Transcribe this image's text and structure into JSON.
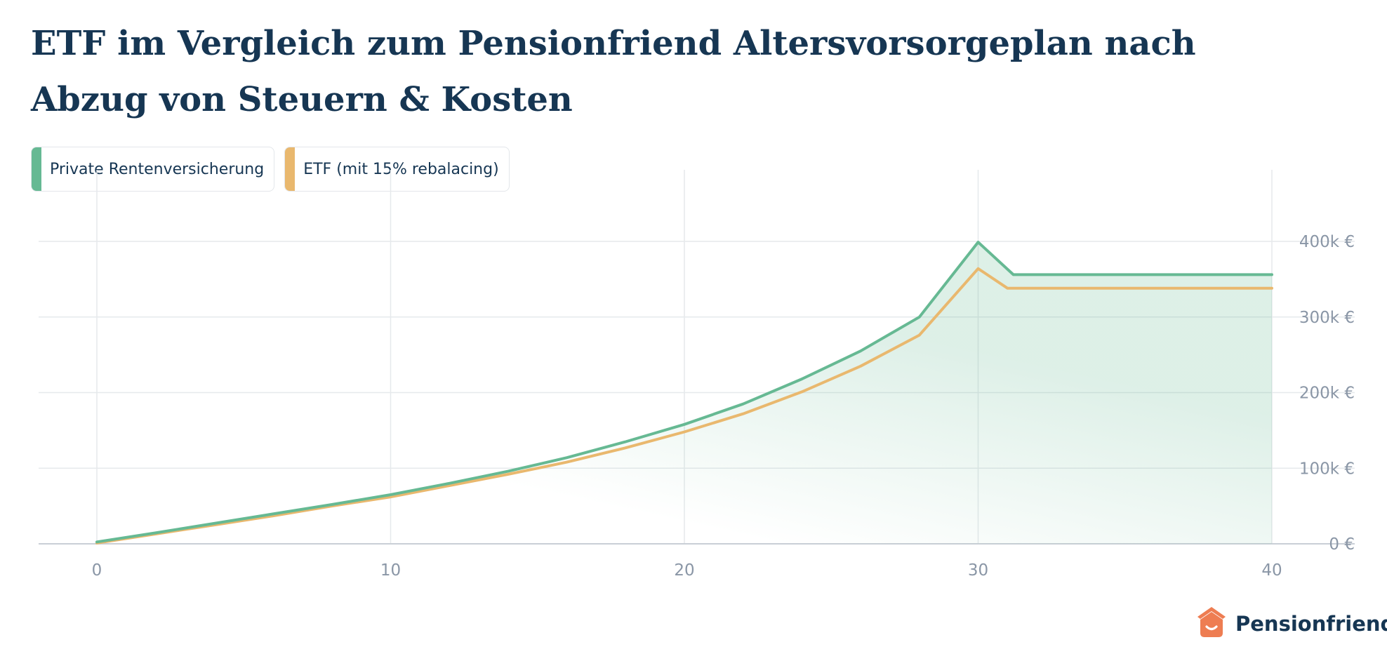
{
  "title": "ETF im Vergleich zum Pensionfriend Altersvorsorgeplan nach Abzug von Steuern & Kosten",
  "brand": {
    "name": "Pensionfriend",
    "icon": "house-smile-icon"
  },
  "colors": {
    "title": "#163653",
    "green": "#66b993",
    "orange": "#e9b86e",
    "grid": "#e6e9ec",
    "axis": "#c9cfd6",
    "tick": "#8a96a6",
    "brand": "#ee7d52"
  },
  "chart_data": {
    "type": "line",
    "grid": true,
    "legend_position": "top-left",
    "x_ticks": [
      0,
      10,
      20,
      30,
      40
    ],
    "y_ticks": [
      0,
      100000,
      200000,
      300000,
      400000
    ],
    "y_tick_labels": [
      "0 €",
      "100k €",
      "200k €",
      "300k €",
      "400k €"
    ],
    "xlim": [
      0,
      40
    ],
    "ylim": [
      0,
      400000
    ],
    "series": [
      {
        "name": "Private Rentenversicherung",
        "color": "#66b993",
        "filled": true,
        "x": [
          0,
          2,
          4,
          6,
          8,
          10,
          12,
          14,
          16,
          18,
          20,
          22,
          24,
          26,
          28,
          30,
          31.2,
          32,
          34,
          36,
          38,
          40
        ],
        "y": [
          2500,
          14500,
          27000,
          39500,
          52000,
          65000,
          80000,
          96000,
          114000,
          135000,
          158000,
          185000,
          218000,
          255000,
          300000,
          399000,
          356000,
          356000,
          356000,
          356000,
          356000,
          356000
        ]
      },
      {
        "name": "ETF (mit 15% rebalacing)",
        "color": "#e9b86e",
        "filled": false,
        "x": [
          0,
          2,
          4,
          6,
          8,
          10,
          12,
          14,
          16,
          18,
          20,
          22,
          24,
          26,
          28,
          30,
          31,
          32,
          34,
          36,
          38,
          40
        ],
        "y": [
          1000,
          13000,
          25000,
          37000,
          50000,
          62000,
          77000,
          92000,
          108000,
          127000,
          148000,
          172000,
          201000,
          235000,
          276000,
          364000,
          338000,
          338000,
          338000,
          338000,
          338000,
          338000
        ]
      }
    ]
  }
}
